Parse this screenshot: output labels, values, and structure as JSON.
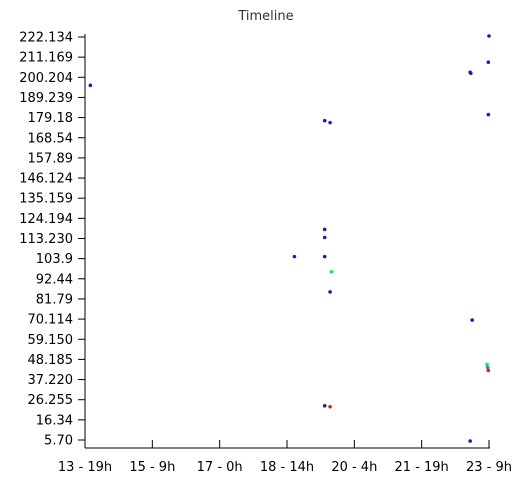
{
  "chart_data": {
    "type": "scatter",
    "title": "Timeline",
    "xlabel": "",
    "ylabel": "",
    "grid": false,
    "legend": "none",
    "x_ticks": [
      "13 - 19h",
      "15 - 9h",
      "17 - 0h",
      "18 - 14h",
      "20 - 4h",
      "21 - 19h",
      "23 - 9h"
    ],
    "y_ticks": [
      "222.134",
      "211.169",
      "200.204",
      "189.239",
      "179.18",
      "168.54",
      "157.89",
      "146.124",
      "135.159",
      "124.194",
      "113.230",
      "103.9",
      "92.44",
      "81.79",
      "70.114",
      "59.150",
      "48.185",
      "37.220",
      "26.255",
      "16.34",
      "5.70"
    ],
    "xlim": [
      0,
      6
    ],
    "ylim": [
      0,
      20
    ],
    "colors": {
      "blue": "#1a1acc",
      "green": "#22dd66",
      "red": "#dd2222",
      "teal": "#2a9a8a"
    },
    "points": [
      {
        "x": 0.08,
        "y": 17.6,
        "color": "blue"
      },
      {
        "x": 3.56,
        "y": 15.85,
        "color": "blue"
      },
      {
        "x": 3.64,
        "y": 15.75,
        "color": "blue"
      },
      {
        "x": 3.56,
        "y": 10.45,
        "color": "blue"
      },
      {
        "x": 3.56,
        "y": 10.05,
        "color": "blue"
      },
      {
        "x": 3.11,
        "y": 9.1,
        "color": "blue"
      },
      {
        "x": 3.56,
        "y": 9.1,
        "color": "blue"
      },
      {
        "x": 3.66,
        "y": 8.35,
        "color": "green"
      },
      {
        "x": 3.64,
        "y": 7.35,
        "color": "blue"
      },
      {
        "x": 3.56,
        "y": 1.7,
        "color": "blue"
      },
      {
        "x": 3.64,
        "y": 1.65,
        "color": "red"
      },
      {
        "x": 5.72,
        "y": 18.25,
        "color": "blue"
      },
      {
        "x": 5.73,
        "y": 18.2,
        "color": "blue"
      },
      {
        "x": 6.0,
        "y": 20.05,
        "color": "blue"
      },
      {
        "x": 5.99,
        "y": 18.75,
        "color": "blue"
      },
      {
        "x": 5.99,
        "y": 16.15,
        "color": "blue"
      },
      {
        "x": 5.75,
        "y": 5.95,
        "color": "blue"
      },
      {
        "x": 5.97,
        "y": 3.75,
        "color": "green"
      },
      {
        "x": 5.98,
        "y": 3.6,
        "color": "teal"
      },
      {
        "x": 5.99,
        "y": 3.45,
        "color": "red"
      },
      {
        "x": 5.72,
        "y": -0.05,
        "color": "blue"
      }
    ]
  }
}
